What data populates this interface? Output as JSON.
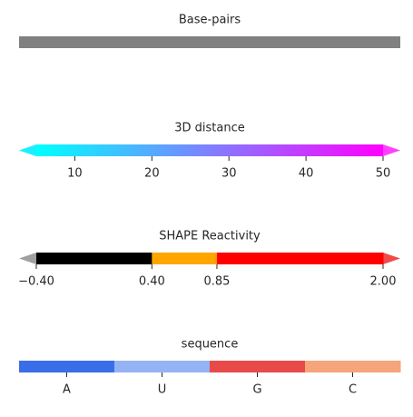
{
  "chart_data": [
    {
      "type": "colorbar",
      "title": "Base-pairs",
      "color": "#808080"
    },
    {
      "type": "colorbar",
      "title": "3D distance",
      "colors": [
        "#00ffff",
        "#ff00ff"
      ],
      "under_color": "#19f0ff",
      "over_color": "#ff40ff",
      "xlim": [
        5,
        50
      ],
      "xticks": [
        10,
        20,
        30,
        40,
        50
      ]
    },
    {
      "type": "colorbar",
      "title": "SHAPE Reactivity",
      "bounds": [
        -0.4,
        0.4,
        0.85,
        2.0
      ],
      "colors": [
        "#000000",
        "#ffa500",
        "#ff0000"
      ],
      "under_color": "#a0a0a0",
      "over_color": "#f04a4a",
      "xlim": [
        -0.4,
        2.0
      ],
      "xticks": [
        {
          "value": -0.4,
          "label": "−0.40"
        },
        {
          "value": 0.4,
          "label": "0.40"
        },
        {
          "value": 0.85,
          "label": "0.85"
        },
        {
          "value": 2.0,
          "label": "2.00"
        }
      ]
    },
    {
      "type": "colorbar",
      "title": "sequence",
      "categories": [
        "A",
        "U",
        "G",
        "C"
      ],
      "colors": [
        "#3a6ee8",
        "#95b3f4",
        "#e84a4a",
        "#f5a47c"
      ]
    }
  ]
}
